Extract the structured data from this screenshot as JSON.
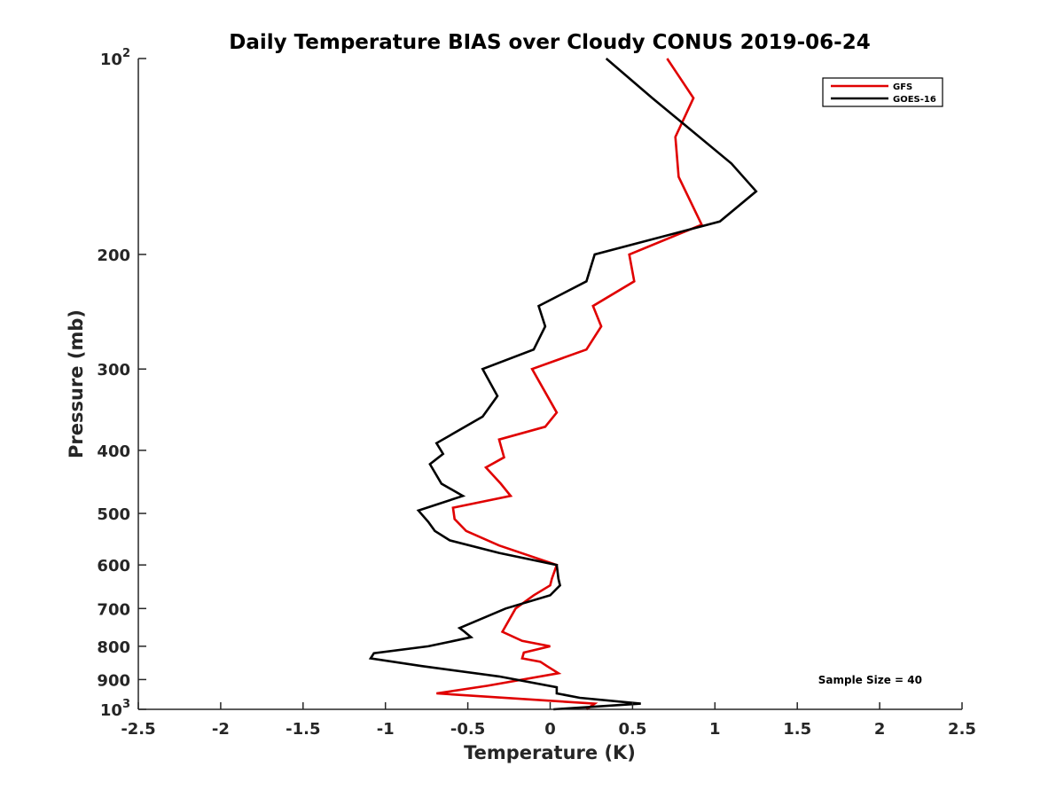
{
  "chart_data": {
    "type": "line",
    "title": "Daily Temperature BIAS over Cloudy CONUS 2019-06-24",
    "xlabel": "Temperature (K)",
    "ylabel": "Pressure (mb)",
    "xlim": [
      -2.5,
      2.5
    ],
    "ylim": [
      100,
      1000
    ],
    "yscale": "log",
    "y_reversed": true,
    "x_ticks": [
      "-2.5",
      "-2",
      "-1.5",
      "-1",
      "-0.5",
      "0",
      "0.5",
      "1",
      "1.5",
      "2",
      "2.5"
    ],
    "y_ticks": [
      {
        "value": 100,
        "base": "10",
        "exp": "2"
      },
      {
        "value": 200,
        "label": "200"
      },
      {
        "value": 300,
        "label": "300"
      },
      {
        "value": 400,
        "label": "400"
      },
      {
        "value": 500,
        "label": "500"
      },
      {
        "value": 600,
        "label": "600"
      },
      {
        "value": 700,
        "label": "700"
      },
      {
        "value": 800,
        "label": "800"
      },
      {
        "value": 900,
        "label": "900"
      },
      {
        "value": 1000,
        "base": "10",
        "exp": "3"
      }
    ],
    "grid": false,
    "legend": "top-right",
    "annotation": "Sample Size = 40",
    "series": [
      {
        "name": "GFS",
        "color": "#e00000",
        "points": [
          [
            0.71,
            100
          ],
          [
            0.87,
            115
          ],
          [
            0.76,
            132
          ],
          [
            0.78,
            152
          ],
          [
            0.92,
            180
          ],
          [
            0.48,
            200
          ],
          [
            0.51,
            220
          ],
          [
            0.26,
            240
          ],
          [
            0.31,
            258
          ],
          [
            0.22,
            280
          ],
          [
            -0.11,
            300
          ],
          [
            0.04,
            350
          ],
          [
            -0.03,
            368
          ],
          [
            -0.31,
            385
          ],
          [
            -0.28,
            410
          ],
          [
            -0.39,
            425
          ],
          [
            -0.3,
            450
          ],
          [
            -0.24,
            470
          ],
          [
            -0.59,
            490
          ],
          [
            -0.58,
            510
          ],
          [
            -0.51,
            532
          ],
          [
            -0.31,
            560
          ],
          [
            0.04,
            600
          ],
          [
            0.01,
            630
          ],
          [
            0.0,
            645
          ],
          [
            -0.1,
            668
          ],
          [
            -0.21,
            700
          ],
          [
            -0.29,
            760
          ],
          [
            -0.17,
            785
          ],
          [
            0.0,
            800
          ],
          [
            -0.16,
            818
          ],
          [
            -0.17,
            835
          ],
          [
            -0.06,
            845
          ],
          [
            -0.02,
            858
          ],
          [
            0.05,
            880
          ],
          [
            -0.38,
            920
          ],
          [
            -0.69,
            945
          ],
          [
            0.27,
            980
          ],
          [
            0.22,
            1000
          ]
        ]
      },
      {
        "name": "GOES-16",
        "color": "#000000",
        "points": [
          [
            0.34,
            100
          ],
          [
            0.62,
            115
          ],
          [
            1.1,
            145
          ],
          [
            1.25,
            160
          ],
          [
            1.03,
            178
          ],
          [
            0.27,
            200
          ],
          [
            0.22,
            220
          ],
          [
            -0.07,
            240
          ],
          [
            -0.03,
            258
          ],
          [
            -0.1,
            280
          ],
          [
            -0.41,
            300
          ],
          [
            -0.32,
            330
          ],
          [
            -0.41,
            355
          ],
          [
            -0.69,
            390
          ],
          [
            -0.65,
            405
          ],
          [
            -0.73,
            420
          ],
          [
            -0.66,
            450
          ],
          [
            -0.53,
            470
          ],
          [
            -0.8,
            495
          ],
          [
            -0.74,
            515
          ],
          [
            -0.7,
            532
          ],
          [
            -0.61,
            550
          ],
          [
            -0.31,
            575
          ],
          [
            0.04,
            600
          ],
          [
            0.05,
            630
          ],
          [
            0.06,
            645
          ],
          [
            0.0,
            668
          ],
          [
            -0.27,
            700
          ],
          [
            -0.55,
            750
          ],
          [
            -0.52,
            760
          ],
          [
            -0.48,
            775
          ],
          [
            -0.74,
            800
          ],
          [
            -1.07,
            820
          ],
          [
            -1.09,
            835
          ],
          [
            -0.78,
            858
          ],
          [
            -0.31,
            890
          ],
          [
            0.04,
            925
          ],
          [
            0.04,
            945
          ],
          [
            0.18,
            960
          ],
          [
            0.55,
            980
          ],
          [
            0.02,
            1000
          ]
        ]
      }
    ]
  }
}
